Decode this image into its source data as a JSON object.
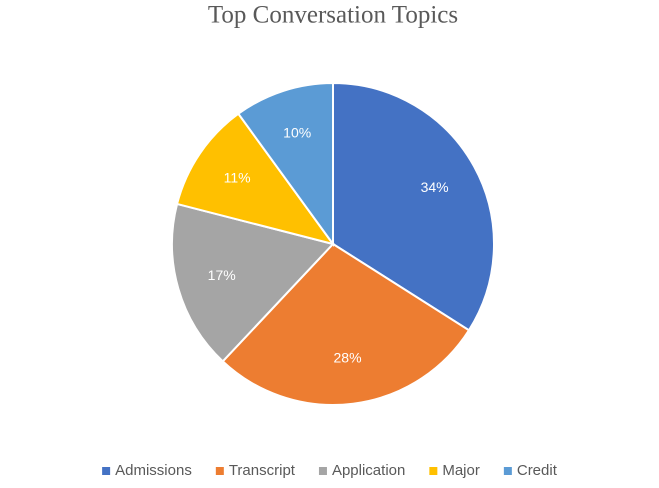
{
  "chart_data": {
    "type": "pie",
    "title": "Top Conversation Topics",
    "categories": [
      "Admissions",
      "Transcript",
      "Application",
      "Major",
      "Credit"
    ],
    "values": [
      34,
      28,
      17,
      11,
      10
    ],
    "value_labels": [
      "34%",
      "28%",
      "17%",
      "11%",
      "10%"
    ],
    "colors": [
      "#4472c4",
      "#ed7d31",
      "#a5a5a5",
      "#ffc000",
      "#5b9bd5"
    ],
    "legend": "bottom"
  }
}
